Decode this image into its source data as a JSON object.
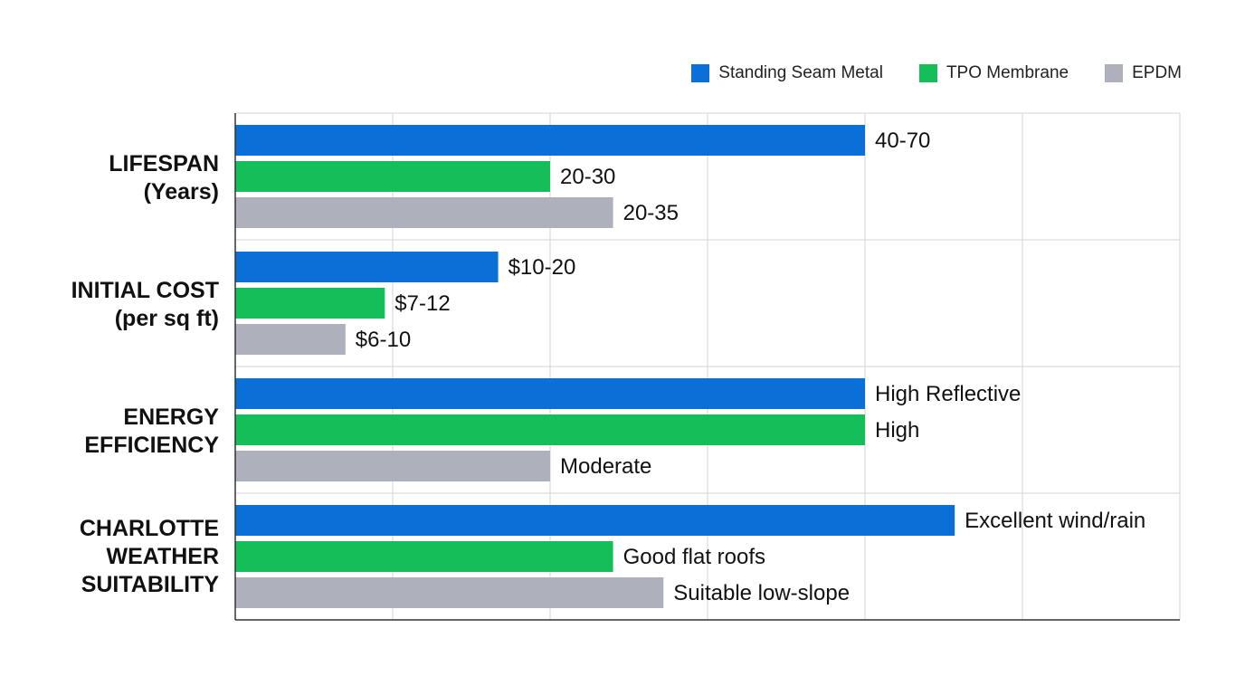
{
  "chart_data": {
    "type": "bar",
    "orientation": "horizontal",
    "title": "",
    "xlabel": "",
    "ylabel": "",
    "grid": true,
    "legend_position": "top-right",
    "xlim": [
      0,
      6
    ],
    "categories": [
      [
        "LIFESPAN",
        "(Years)"
      ],
      [
        "INITIAL COST",
        "(per sq ft)"
      ],
      [
        "ENERGY",
        "EFFICIENCY"
      ],
      [
        "CHARLOTTE",
        "WEATHER",
        "SUITABILITY"
      ]
    ],
    "series": [
      {
        "name": "Standing Seam Metal",
        "color": "#0a6fd6",
        "values": [
          4.0,
          1.67,
          4.0,
          4.57
        ],
        "labels": [
          "40-70",
          "$10-20",
          "High Reflective",
          "Excellent wind/rain"
        ]
      },
      {
        "name": "TPO Membrane",
        "color": "#14bf5a",
        "values": [
          2.0,
          0.95,
          4.0,
          2.4
        ],
        "labels": [
          "20-30",
          "$7-12",
          "High",
          "Good flat roofs"
        ]
      },
      {
        "name": "EPDM",
        "color": "#aeb0bb",
        "values": [
          2.4,
          0.7,
          2.0,
          2.72
        ],
        "labels": [
          "20-35",
          "$6-10",
          "Moderate",
          "Suitable low-slope"
        ]
      }
    ]
  }
}
